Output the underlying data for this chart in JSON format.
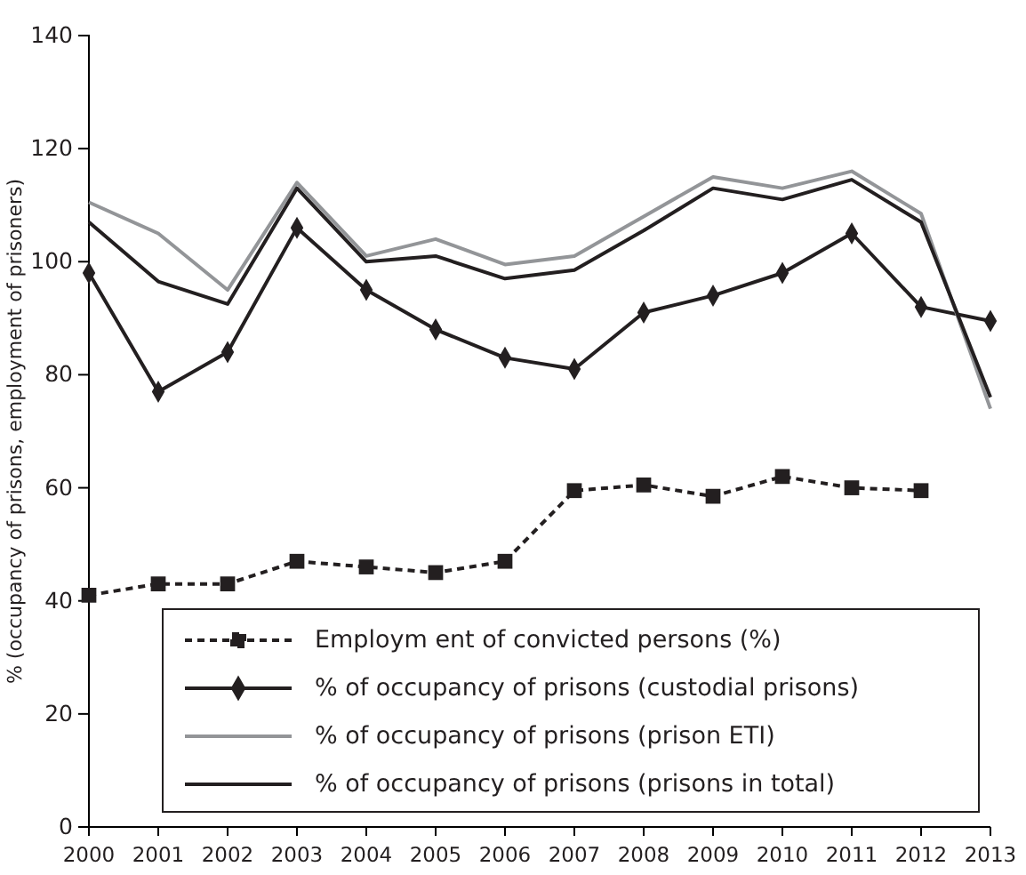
{
  "chart_data": {
    "type": "line",
    "ylabel": "% (occupancy of prisons, employment of prisoners)",
    "categories": [
      "2000",
      "2001",
      "2002",
      "2003",
      "2004",
      "2005",
      "2006",
      "2007",
      "2008",
      "2009",
      "2010",
      "2011",
      "2012",
      "2013"
    ],
    "ylim": [
      0,
      140
    ],
    "yticks": [
      0,
      20,
      40,
      60,
      80,
      100,
      120,
      140
    ],
    "grid": false,
    "legend": "bottom right",
    "series": [
      {
        "name": "Employm ent of convicted persons (%)",
        "color": "#231f20",
        "marker": "square",
        "line_style": "dotted",
        "values": [
          41,
          43,
          43,
          47,
          46,
          45,
          47,
          59.5,
          60.5,
          58.5,
          62,
          60,
          59.5,
          null
        ]
      },
      {
        "name": "% of occupancy of prisons (custodial prisons)",
        "color": "#231f20",
        "marker": "diamond",
        "line_style": "solid",
        "values": [
          98,
          77,
          84,
          106,
          95,
          88,
          83,
          81,
          91,
          94,
          98,
          105,
          92,
          89.5
        ]
      },
      {
        "name": "% of occupancy of prisons (prison ETI)",
        "color": "#939598",
        "marker": "none",
        "line_style": "solid",
        "values": [
          110.5,
          105,
          95,
          114,
          101,
          104,
          99.5,
          101,
          108,
          115,
          113,
          116,
          108.5,
          74
        ]
      },
      {
        "name": "% of occupancy of prisons (prisons in total)",
        "color": "#231f20",
        "marker": "none",
        "line_style": "solid",
        "values": [
          107,
          96.5,
          92.5,
          113,
          100,
          101,
          97,
          98.5,
          105.5,
          113,
          111,
          114.5,
          107,
          76
        ]
      }
    ]
  }
}
